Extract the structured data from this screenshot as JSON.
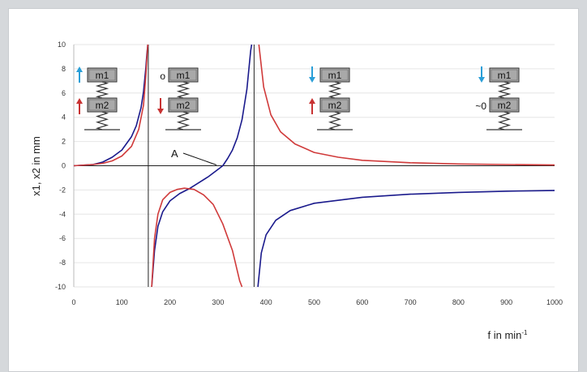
{
  "colors": {
    "page_background": "#d5d8db",
    "card_background": "#ffffff",
    "x1_curve": "#1a1a8c",
    "x2_curve": "#d03a3a",
    "arrow_up_blue": "#2a9fd8",
    "arrow_down_blue": "#2a9fd8",
    "arrow_red": "#c83232",
    "grid": "#e6e6e6",
    "axis": "#222222"
  },
  "icons": {
    "arrow_up": "arrow-up-icon",
    "arrow_down": "arrow-down-icon",
    "spring": "spring-icon",
    "mass_block": "mass-block-icon",
    "ground": "ground-line-icon"
  },
  "chart_data": {
    "type": "line",
    "title": "",
    "xlabel": "f in min",
    "xlabel_sup": "-1",
    "ylabel": "x1, x2  in mm",
    "xlim": [
      0,
      1000
    ],
    "ylim": [
      -10,
      10
    ],
    "x_ticks": [
      "0",
      "100",
      "200",
      "300",
      "400",
      "500",
      "600",
      "700",
      "800",
      "900",
      "1000"
    ],
    "y_ticks": [
      "10",
      "8",
      "6",
      "4",
      "2",
      "0",
      "-2",
      "-4",
      "-6",
      "-8",
      "-10"
    ],
    "grid": "horizontal",
    "resonances": [
      155,
      375
    ],
    "series": [
      {
        "color": "#1a1a8c",
        "segments": [
          [
            [
              0,
              0
            ],
            [
              40,
              0.1
            ],
            [
              60,
              0.3
            ],
            [
              80,
              0.7
            ],
            [
              100,
              1.3
            ],
            [
              120,
              2.4
            ],
            [
              130,
              3.3
            ],
            [
              140,
              4.8
            ],
            [
              145,
              6.1
            ],
            [
              150,
              8.1
            ],
            [
              152,
              9.2
            ],
            [
              154,
              10
            ]
          ],
          [
            [
              162,
              -10
            ],
            [
              168,
              -7
            ],
            [
              175,
              -5
            ],
            [
              185,
              -3.8
            ],
            [
              200,
              -2.9
            ],
            [
              220,
              -2.3
            ],
            [
              240,
              -1.9
            ],
            [
              260,
              -1.4
            ],
            [
              280,
              -0.9
            ],
            [
              300,
              -0.3
            ],
            [
              310,
              0
            ],
            [
              320,
              0.6
            ],
            [
              330,
              1.3
            ],
            [
              340,
              2.3
            ],
            [
              350,
              3.8
            ],
            [
              360,
              6.3
            ],
            [
              368,
              9.5
            ],
            [
              370,
              10
            ]
          ],
          [
            [
              383,
              -10
            ],
            [
              390,
              -7.2
            ],
            [
              400,
              -5.7
            ],
            [
              420,
              -4.5
            ],
            [
              450,
              -3.7
            ],
            [
              500,
              -3.1
            ],
            [
              600,
              -2.6
            ],
            [
              700,
              -2.35
            ],
            [
              800,
              -2.2
            ],
            [
              900,
              -2.1
            ],
            [
              1000,
              -2.05
            ]
          ]
        ]
      },
      {
        "color": "#d03a3a",
        "segments": [
          [
            [
              0,
              0
            ],
            [
              40,
              0.1
            ],
            [
              60,
              0.2
            ],
            [
              80,
              0.4
            ],
            [
              100,
              0.8
            ],
            [
              120,
              1.6
            ],
            [
              135,
              3
            ],
            [
              145,
              5
            ],
            [
              150,
              7.5
            ],
            [
              153,
              9.5
            ],
            [
              154,
              10
            ]
          ],
          [
            [
              162,
              -10
            ],
            [
              168,
              -6
            ],
            [
              175,
              -4
            ],
            [
              185,
              -2.8
            ],
            [
              200,
              -2.2
            ],
            [
              215,
              -1.95
            ],
            [
              230,
              -1.85
            ],
            [
              250,
              -1.95
            ],
            [
              270,
              -2.4
            ],
            [
              290,
              -3.2
            ],
            [
              310,
              -4.8
            ],
            [
              330,
              -7
            ],
            [
              345,
              -9.5
            ],
            [
              350,
              -10
            ]
          ],
          [
            [
              385,
              10
            ],
            [
              395,
              6.5
            ],
            [
              410,
              4.2
            ],
            [
              430,
              2.8
            ],
            [
              460,
              1.8
            ],
            [
              500,
              1.1
            ],
            [
              550,
              0.7
            ],
            [
              600,
              0.45
            ],
            [
              700,
              0.25
            ],
            [
              800,
              0.15
            ],
            [
              900,
              0.1
            ],
            [
              1000,
              0.06
            ]
          ]
        ]
      }
    ],
    "annotation": {
      "label": "A",
      "x": 300,
      "y": 0
    }
  },
  "diagrams": [
    {
      "top_mass": "m1",
      "bottom_mass": "m2",
      "top_marker": "arrow-up",
      "bottom_marker": "arrow-up"
    },
    {
      "top_mass": "m1",
      "bottom_mass": "m2",
      "top_marker": "o",
      "bottom_marker": "arrow-down"
    },
    {
      "top_mass": "m1",
      "bottom_mass": "m2",
      "top_marker": "arrow-down",
      "bottom_marker": "arrow-up"
    },
    {
      "top_mass": "m1",
      "bottom_mass": "m2",
      "top_marker": "arrow-down",
      "bottom_marker": "~0"
    }
  ]
}
